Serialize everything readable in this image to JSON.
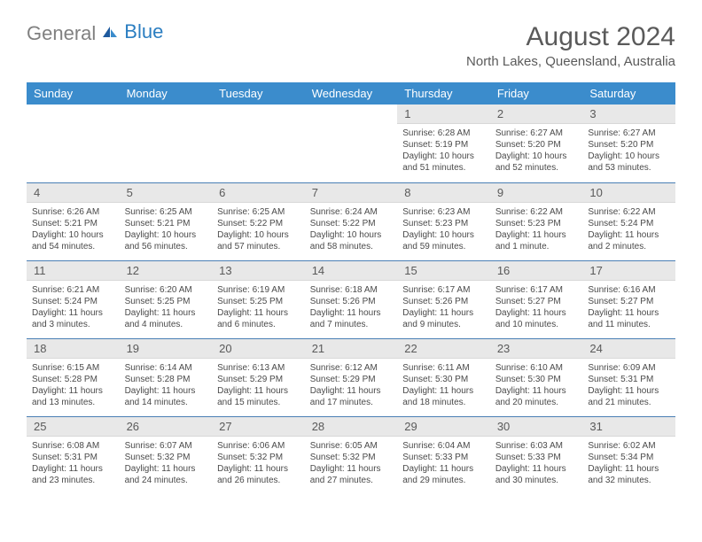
{
  "logo": {
    "gray_text": "General",
    "blue_text": "Blue"
  },
  "header": {
    "month_title": "August 2024",
    "location": "North Lakes, Queensland, Australia"
  },
  "days_of_week": [
    "Sunday",
    "Monday",
    "Tuesday",
    "Wednesday",
    "Thursday",
    "Friday",
    "Saturday"
  ],
  "colors": {
    "header_bg": "#3b8ccc",
    "row_separator": "#4a7fb5",
    "day_num_bg": "#e8e8e8",
    "text_gray": "#5a5a5a",
    "logo_blue": "#2b7ec1"
  },
  "calendar": {
    "weeks": [
      [
        {
          "empty": true
        },
        {
          "empty": true
        },
        {
          "empty": true
        },
        {
          "empty": true
        },
        {
          "day": "1",
          "sunrise": "Sunrise: 6:28 AM",
          "sunset": "Sunset: 5:19 PM",
          "daylight1": "Daylight: 10 hours",
          "daylight2": "and 51 minutes."
        },
        {
          "day": "2",
          "sunrise": "Sunrise: 6:27 AM",
          "sunset": "Sunset: 5:20 PM",
          "daylight1": "Daylight: 10 hours",
          "daylight2": "and 52 minutes."
        },
        {
          "day": "3",
          "sunrise": "Sunrise: 6:27 AM",
          "sunset": "Sunset: 5:20 PM",
          "daylight1": "Daylight: 10 hours",
          "daylight2": "and 53 minutes."
        }
      ],
      [
        {
          "day": "4",
          "sunrise": "Sunrise: 6:26 AM",
          "sunset": "Sunset: 5:21 PM",
          "daylight1": "Daylight: 10 hours",
          "daylight2": "and 54 minutes."
        },
        {
          "day": "5",
          "sunrise": "Sunrise: 6:25 AM",
          "sunset": "Sunset: 5:21 PM",
          "daylight1": "Daylight: 10 hours",
          "daylight2": "and 56 minutes."
        },
        {
          "day": "6",
          "sunrise": "Sunrise: 6:25 AM",
          "sunset": "Sunset: 5:22 PM",
          "daylight1": "Daylight: 10 hours",
          "daylight2": "and 57 minutes."
        },
        {
          "day": "7",
          "sunrise": "Sunrise: 6:24 AM",
          "sunset": "Sunset: 5:22 PM",
          "daylight1": "Daylight: 10 hours",
          "daylight2": "and 58 minutes."
        },
        {
          "day": "8",
          "sunrise": "Sunrise: 6:23 AM",
          "sunset": "Sunset: 5:23 PM",
          "daylight1": "Daylight: 10 hours",
          "daylight2": "and 59 minutes."
        },
        {
          "day": "9",
          "sunrise": "Sunrise: 6:22 AM",
          "sunset": "Sunset: 5:23 PM",
          "daylight1": "Daylight: 11 hours",
          "daylight2": "and 1 minute."
        },
        {
          "day": "10",
          "sunrise": "Sunrise: 6:22 AM",
          "sunset": "Sunset: 5:24 PM",
          "daylight1": "Daylight: 11 hours",
          "daylight2": "and 2 minutes."
        }
      ],
      [
        {
          "day": "11",
          "sunrise": "Sunrise: 6:21 AM",
          "sunset": "Sunset: 5:24 PM",
          "daylight1": "Daylight: 11 hours",
          "daylight2": "and 3 minutes."
        },
        {
          "day": "12",
          "sunrise": "Sunrise: 6:20 AM",
          "sunset": "Sunset: 5:25 PM",
          "daylight1": "Daylight: 11 hours",
          "daylight2": "and 4 minutes."
        },
        {
          "day": "13",
          "sunrise": "Sunrise: 6:19 AM",
          "sunset": "Sunset: 5:25 PM",
          "daylight1": "Daylight: 11 hours",
          "daylight2": "and 6 minutes."
        },
        {
          "day": "14",
          "sunrise": "Sunrise: 6:18 AM",
          "sunset": "Sunset: 5:26 PM",
          "daylight1": "Daylight: 11 hours",
          "daylight2": "and 7 minutes."
        },
        {
          "day": "15",
          "sunrise": "Sunrise: 6:17 AM",
          "sunset": "Sunset: 5:26 PM",
          "daylight1": "Daylight: 11 hours",
          "daylight2": "and 9 minutes."
        },
        {
          "day": "16",
          "sunrise": "Sunrise: 6:17 AM",
          "sunset": "Sunset: 5:27 PM",
          "daylight1": "Daylight: 11 hours",
          "daylight2": "and 10 minutes."
        },
        {
          "day": "17",
          "sunrise": "Sunrise: 6:16 AM",
          "sunset": "Sunset: 5:27 PM",
          "daylight1": "Daylight: 11 hours",
          "daylight2": "and 11 minutes."
        }
      ],
      [
        {
          "day": "18",
          "sunrise": "Sunrise: 6:15 AM",
          "sunset": "Sunset: 5:28 PM",
          "daylight1": "Daylight: 11 hours",
          "daylight2": "and 13 minutes."
        },
        {
          "day": "19",
          "sunrise": "Sunrise: 6:14 AM",
          "sunset": "Sunset: 5:28 PM",
          "daylight1": "Daylight: 11 hours",
          "daylight2": "and 14 minutes."
        },
        {
          "day": "20",
          "sunrise": "Sunrise: 6:13 AM",
          "sunset": "Sunset: 5:29 PM",
          "daylight1": "Daylight: 11 hours",
          "daylight2": "and 15 minutes."
        },
        {
          "day": "21",
          "sunrise": "Sunrise: 6:12 AM",
          "sunset": "Sunset: 5:29 PM",
          "daylight1": "Daylight: 11 hours",
          "daylight2": "and 17 minutes."
        },
        {
          "day": "22",
          "sunrise": "Sunrise: 6:11 AM",
          "sunset": "Sunset: 5:30 PM",
          "daylight1": "Daylight: 11 hours",
          "daylight2": "and 18 minutes."
        },
        {
          "day": "23",
          "sunrise": "Sunrise: 6:10 AM",
          "sunset": "Sunset: 5:30 PM",
          "daylight1": "Daylight: 11 hours",
          "daylight2": "and 20 minutes."
        },
        {
          "day": "24",
          "sunrise": "Sunrise: 6:09 AM",
          "sunset": "Sunset: 5:31 PM",
          "daylight1": "Daylight: 11 hours",
          "daylight2": "and 21 minutes."
        }
      ],
      [
        {
          "day": "25",
          "sunrise": "Sunrise: 6:08 AM",
          "sunset": "Sunset: 5:31 PM",
          "daylight1": "Daylight: 11 hours",
          "daylight2": "and 23 minutes."
        },
        {
          "day": "26",
          "sunrise": "Sunrise: 6:07 AM",
          "sunset": "Sunset: 5:32 PM",
          "daylight1": "Daylight: 11 hours",
          "daylight2": "and 24 minutes."
        },
        {
          "day": "27",
          "sunrise": "Sunrise: 6:06 AM",
          "sunset": "Sunset: 5:32 PM",
          "daylight1": "Daylight: 11 hours",
          "daylight2": "and 26 minutes."
        },
        {
          "day": "28",
          "sunrise": "Sunrise: 6:05 AM",
          "sunset": "Sunset: 5:32 PM",
          "daylight1": "Daylight: 11 hours",
          "daylight2": "and 27 minutes."
        },
        {
          "day": "29",
          "sunrise": "Sunrise: 6:04 AM",
          "sunset": "Sunset: 5:33 PM",
          "daylight1": "Daylight: 11 hours",
          "daylight2": "and 29 minutes."
        },
        {
          "day": "30",
          "sunrise": "Sunrise: 6:03 AM",
          "sunset": "Sunset: 5:33 PM",
          "daylight1": "Daylight: 11 hours",
          "daylight2": "and 30 minutes."
        },
        {
          "day": "31",
          "sunrise": "Sunrise: 6:02 AM",
          "sunset": "Sunset: 5:34 PM",
          "daylight1": "Daylight: 11 hours",
          "daylight2": "and 32 minutes."
        }
      ]
    ]
  }
}
